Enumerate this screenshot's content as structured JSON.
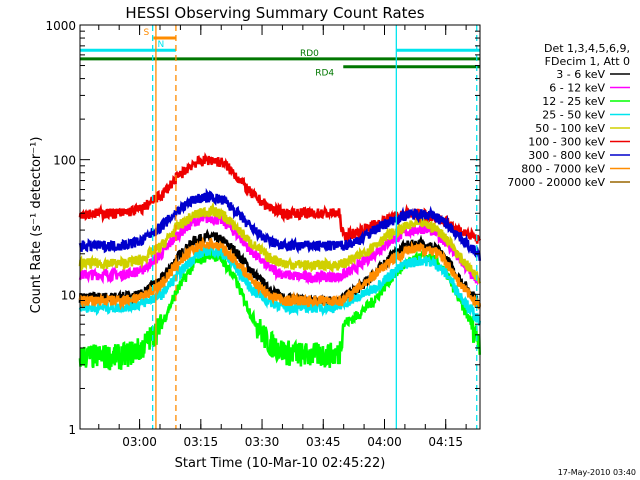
{
  "chart_data": {
    "type": "line",
    "title": "HESSI Observing Summary Count Rates",
    "xlabel": "Start Time (10-Mar-10 02:45:22)",
    "ylabel": "Count Rate (s⁻¹ detector⁻¹)",
    "footer": "17-May-2010 03:40",
    "x_unit": "minutes after 02:45:22",
    "xlim": [
      0,
      98
    ],
    "ylim": [
      1,
      1000
    ],
    "yscale": "log",
    "x_ticks": [
      {
        "value": 14.6,
        "label": "03:00"
      },
      {
        "value": 29.6,
        "label": "03:15"
      },
      {
        "value": 44.6,
        "label": "03:30"
      },
      {
        "value": 59.6,
        "label": "03:45"
      },
      {
        "value": 74.6,
        "label": "04:00"
      },
      {
        "value": 89.6,
        "label": "04:15"
      }
    ],
    "y_ticks": [
      {
        "value": 1,
        "label": "1"
      },
      {
        "value": 10,
        "label": "10"
      },
      {
        "value": 100,
        "label": "100"
      },
      {
        "value": 1000,
        "label": "1000"
      }
    ],
    "legend_header": [
      "Det 1,3,4,5,6,9,",
      "FDecim 1, Att 0"
    ],
    "legend_position": "right",
    "flags": [
      {
        "label": "",
        "y": 650,
        "x_segments": [
          [
            0,
            18
          ],
          [
            77.5,
            98
          ]
        ],
        "color": "#00e5ee"
      },
      {
        "label": "S",
        "y": 800,
        "x_segments": [
          [
            18,
            23.5
          ]
        ],
        "color": "#ff8c00"
      },
      {
        "label": "N",
        "y": 650,
        "x_segments": [
          [
            18,
            23.5
          ]
        ],
        "color": "#00e5ee"
      },
      {
        "label": "RD0",
        "y": 560,
        "x_segments": [
          [
            0,
            98
          ]
        ],
        "color": "#007700"
      },
      {
        "label": "RD4",
        "y": 490,
        "x_segments": [
          [
            64.5,
            98
          ]
        ],
        "color": "#007700"
      }
    ],
    "vlines": [
      {
        "x": 17.8,
        "color": "#00e5ee",
        "style": "dashed"
      },
      {
        "x": 18.6,
        "color": "#ff8c00",
        "style": "solid"
      },
      {
        "x": 23.5,
        "color": "#ff8c00",
        "style": "dashed"
      },
      {
        "x": 77.5,
        "color": "#00e5ee",
        "style": "solid"
      },
      {
        "x": 97.2,
        "color": "#00e5ee",
        "style": "dashed"
      }
    ],
    "x": [
      0,
      5,
      10,
      15,
      20,
      24,
      28,
      32,
      35,
      38,
      42,
      46,
      50,
      55,
      60,
      63.5,
      64.5,
      68,
      72,
      76,
      80,
      84,
      87,
      90,
      93,
      96,
      98
    ],
    "series": [
      {
        "name": "3 - 6 keV",
        "color": "#000000",
        "values": [
          9.5,
          9.5,
          9.5,
          10,
          13,
          19,
          25,
          27,
          25,
          21,
          15,
          11,
          9.5,
          9,
          9,
          9,
          9.5,
          11,
          14,
          19,
          23,
          24,
          22,
          18,
          13,
          10,
          8.5
        ]
      },
      {
        "name": "6 - 12 keV",
        "color": "#ff00ff",
        "values": [
          14,
          14,
          14,
          15,
          20,
          28,
          35,
          37,
          35,
          29,
          21,
          16,
          14,
          13.5,
          13.5,
          13.5,
          14,
          16,
          20,
          25,
          29,
          31,
          29,
          24,
          18,
          14,
          12
        ]
      },
      {
        "name": "12 - 25 keV",
        "color": "#00ff00",
        "values": [
          3.5,
          3.5,
          3.5,
          4,
          6,
          11,
          17,
          20,
          18,
          13,
          7,
          4.5,
          3.8,
          3.6,
          3.6,
          3.6,
          6,
          7,
          9,
          13,
          17,
          19,
          18,
          14,
          9,
          6,
          4.5
        ]
      },
      {
        "name": "25 - 50 keV",
        "color": "#00e5ee",
        "values": [
          8,
          8,
          8,
          8.5,
          10,
          14,
          19,
          22,
          20,
          16,
          11,
          9,
          8,
          8,
          8,
          8,
          8.5,
          9.5,
          11,
          14,
          17,
          18,
          17,
          14,
          10,
          7.5,
          6
        ]
      },
      {
        "name": "50 - 100 keV",
        "color": "#d0d000",
        "values": [
          17,
          17,
          17,
          18,
          23,
          32,
          39,
          42,
          39,
          32,
          24,
          19,
          17,
          16.5,
          16.5,
          16.5,
          17,
          19,
          23,
          28,
          32,
          34,
          31,
          26,
          19,
          15,
          13
        ]
      },
      {
        "name": "100 - 300 keV",
        "color": "#ee0000",
        "values": [
          40,
          40,
          40,
          43,
          55,
          75,
          95,
          100,
          95,
          78,
          56,
          45,
          40,
          40,
          40,
          40,
          27,
          29,
          33,
          37,
          40,
          40,
          38,
          34,
          30,
          27,
          25
        ]
      },
      {
        "name": "300 - 800 keV",
        "color": "#0000cc",
        "values": [
          23,
          23,
          23,
          25,
          32,
          42,
          51,
          53,
          50,
          42,
          31,
          25,
          23,
          23,
          23,
          23,
          23,
          25,
          30,
          35,
          39,
          40,
          38,
          33,
          27,
          22,
          19
        ]
      },
      {
        "name": "800 - 7000 keV",
        "color": "#ff8c00",
        "values": [
          9,
          9,
          9,
          9.5,
          12,
          17,
          22,
          24,
          22,
          18,
          13,
          10,
          9,
          9,
          9,
          9,
          9,
          11,
          14,
          18,
          21,
          22,
          21,
          17,
          12,
          9.5,
          8
        ]
      },
      {
        "name": "7000 - 20000 keV",
        "color": "#996600",
        "values": [
          null,
          null,
          null,
          null,
          null,
          null,
          null,
          null,
          null,
          null,
          null,
          null,
          null,
          null,
          null,
          null,
          null,
          null,
          null,
          null,
          null,
          null,
          null,
          null,
          null,
          null,
          null
        ]
      }
    ]
  }
}
